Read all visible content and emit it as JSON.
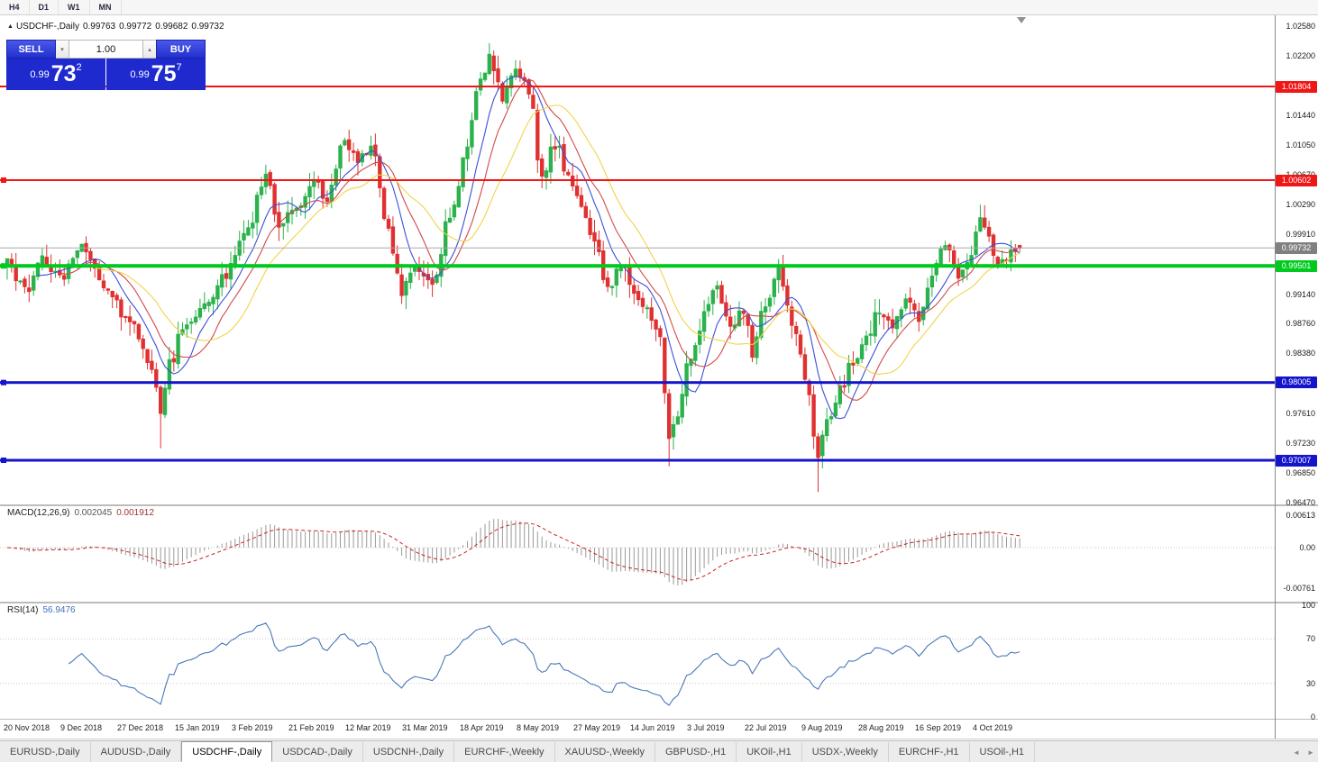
{
  "icons": {
    "expand": "▲",
    "spinner_up": "▴",
    "spinner_down": "▾",
    "tab_scroll_left": "◄",
    "tab_scroll_right": "►"
  },
  "toolbar": {
    "timeframes": [
      "H4",
      "D1",
      "W1",
      "MN"
    ]
  },
  "header": {
    "symbol": "USDCHF-,Daily",
    "open": "0.99763",
    "high": "0.99772",
    "low": "0.99682",
    "close": "0.99732"
  },
  "trade_panel": {
    "sell_label": "SELL",
    "buy_label": "BUY",
    "volume": "1.00",
    "sell_price": {
      "prefix": "0.99",
      "big": "73",
      "sup": "2"
    },
    "buy_price": {
      "prefix": "0.99",
      "big": "75",
      "sup": "7"
    }
  },
  "price_axis": {
    "ticks": [
      "1.02580",
      "1.02200",
      "1.01440",
      "1.01050",
      "1.00670",
      "1.00290",
      "0.99910",
      "0.99140",
      "0.98760",
      "0.98380",
      "0.97610",
      "0.97230",
      "0.96850",
      "0.96470"
    ],
    "current_price": {
      "label": "0.99732",
      "value": 0.99732,
      "color": "#808080"
    }
  },
  "hlines": [
    {
      "value": 1.01804,
      "label": "1.01804",
      "color": "#f01616",
      "width": 2,
      "handle": false
    },
    {
      "value": 1.00602,
      "label": "1.00602",
      "color": "#f01616",
      "width": 2,
      "handle": true
    },
    {
      "value": 0.99501,
      "label": "0.99501",
      "color": "#00ca1e",
      "width": 4,
      "handle": true
    },
    {
      "value": 0.98005,
      "label": "0.98005",
      "color": "#1414cc",
      "width": 3,
      "handle": true
    },
    {
      "value": 0.97007,
      "label": "0.97007",
      "color": "#1414cc",
      "width": 3,
      "handle": true
    }
  ],
  "macd_panel": {
    "label": "MACD(12,26,9)",
    "value_main": "0.002045",
    "value_signal": "0.001912",
    "axis": [
      "0.00613",
      "0.00",
      "-0.00761"
    ]
  },
  "rsi_panel": {
    "label": "RSI(14)",
    "value": "56.9476",
    "axis": [
      "100",
      "70",
      "30",
      "0"
    ],
    "levels": [
      70,
      30
    ]
  },
  "x_axis": {
    "labels": [
      "20 Nov 2018",
      "9 Dec 2018",
      "27 Dec 2018",
      "15 Jan 2019",
      "3 Feb 2019",
      "21 Feb 2019",
      "12 Mar 2019",
      "31 Mar 2019",
      "18 Apr 2019",
      "8 May 2019",
      "27 May 2019",
      "14 Jun 2019",
      "3 Jul 2019",
      "22 Jul 2019",
      "9 Aug 2019",
      "28 Aug 2019",
      "16 Sep 2019",
      "4 Oct 2019"
    ],
    "candles_per_label": 13
  },
  "tabs": {
    "items": [
      "EURUSD-,Daily",
      "AUDUSD-,Daily",
      "USDCHF-,Daily",
      "USDCAD-,Daily",
      "USDCNH-,Daily",
      "EURCHF-,Weekly",
      "XAUUSD-,Weekly",
      "GBPUSD-,H1",
      "UKOil-,H1",
      "USDX-,Weekly",
      "EURCHF-,H1",
      "USOil-,H1"
    ],
    "active_index": 2
  },
  "chart_data": {
    "type": "candlestick",
    "symbol": "USDCHF",
    "timeframe": "Daily",
    "title": "USDCHF-,Daily",
    "n": 232,
    "ylim": [
      0.9644,
      1.0272
    ],
    "last_ohlc": {
      "o": 0.99763,
      "h": 0.99772,
      "l": 0.99682,
      "c": 0.99732
    },
    "waypoints": [
      [
        0,
        0.9952
      ],
      [
        4,
        0.9918
      ],
      [
        8,
        0.9962
      ],
      [
        12,
        0.9935
      ],
      [
        17,
        0.9978
      ],
      [
        22,
        0.9925
      ],
      [
        27,
        0.9888
      ],
      [
        33,
        0.9825
      ],
      [
        35,
        0.9768
      ],
      [
        37,
        0.9822
      ],
      [
        40,
        0.9868
      ],
      [
        45,
        0.9902
      ],
      [
        50,
        0.9942
      ],
      [
        55,
        1.0
      ],
      [
        59,
        1.0066
      ],
      [
        62,
        1.0006
      ],
      [
        66,
        1.0028
      ],
      [
        70,
        1.0058
      ],
      [
        73,
        1.004
      ],
      [
        77,
        1.0115
      ],
      [
        80,
        1.0082
      ],
      [
        83,
        1.0102
      ],
      [
        87,
        0.9992
      ],
      [
        90,
        0.9914
      ],
      [
        93,
        0.9954
      ],
      [
        97,
        0.993
      ],
      [
        101,
        1.0012
      ],
      [
        105,
        1.0108
      ],
      [
        108,
        1.0188
      ],
      [
        110,
        1.0222
      ],
      [
        113,
        1.0168
      ],
      [
        116,
        1.0202
      ],
      [
        119,
        1.0178
      ],
      [
        122,
        1.0064
      ],
      [
        125,
        1.0108
      ],
      [
        128,
        1.0068
      ],
      [
        131,
        1.0026
      ],
      [
        134,
        0.9986
      ],
      [
        137,
        0.992
      ],
      [
        140,
        0.9952
      ],
      [
        144,
        0.9902
      ],
      [
        147,
        0.9885
      ],
      [
        149,
        0.9862
      ],
      [
        151,
        0.9726
      ],
      [
        153,
        0.9762
      ],
      [
        156,
        0.9836
      ],
      [
        159,
        0.9884
      ],
      [
        162,
        0.992
      ],
      [
        165,
        0.9868
      ],
      [
        168,
        0.9896
      ],
      [
        170,
        0.9838
      ],
      [
        173,
        0.9902
      ],
      [
        176,
        0.9944
      ],
      [
        179,
        0.988
      ],
      [
        182,
        0.9812
      ],
      [
        185,
        0.9712
      ],
      [
        187,
        0.9748
      ],
      [
        190,
        0.9792
      ],
      [
        193,
        0.9826
      ],
      [
        196,
        0.9858
      ],
      [
        199,
        0.9892
      ],
      [
        202,
        0.9872
      ],
      [
        205,
        0.9908
      ],
      [
        208,
        0.9886
      ],
      [
        211,
        0.9944
      ],
      [
        214,
        0.9972
      ],
      [
        217,
        0.994
      ],
      [
        220,
        0.9968
      ],
      [
        222,
        1.0012
      ],
      [
        224,
        0.9992
      ],
      [
        226,
        0.9948
      ],
      [
        228,
        0.9962
      ],
      [
        231,
        0.99732
      ]
    ],
    "extremes": [
      {
        "i": 35,
        "low": 0.9716
      },
      {
        "i": 110,
        "high": 1.0236
      },
      {
        "i": 151,
        "low": 0.9693
      },
      {
        "i": 185,
        "low": 0.966
      }
    ],
    "moving_averages": [
      {
        "period": 8,
        "color": "#3a50d9"
      },
      {
        "period": 13,
        "color": "#d24848"
      },
      {
        "period": 21,
        "color": "#f0d44a"
      }
    ],
    "colors": {
      "up": "#2bb24c",
      "down": "#e03131",
      "macd_hist": "#9a9a9a",
      "macd_signal": "#cc2222",
      "rsi_line": "#4a78b8",
      "current_price_line": "#a8a8a8"
    },
    "indicators": {
      "macd": {
        "fast": 12,
        "slow": 26,
        "signal": 9
      },
      "rsi": {
        "period": 14
      }
    }
  }
}
